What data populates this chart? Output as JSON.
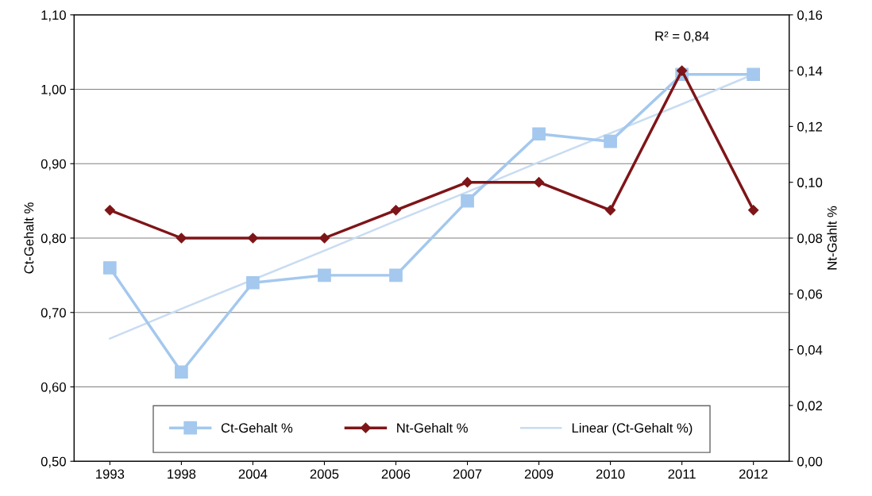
{
  "chart_data": {
    "type": "line",
    "categories": [
      "1993",
      "1998",
      "2004",
      "2005",
      "2006",
      "2007",
      "2009",
      "2010",
      "2011",
      "2012"
    ],
    "ylabel": "Ct-Gehalt %",
    "y2label": "Nt-Gahlt %",
    "series": [
      {
        "name": "Ct-Gehalt %",
        "color": "#a4c8ee",
        "marker": "square",
        "values": [
          0.76,
          0.62,
          0.74,
          0.75,
          0.75,
          0.85,
          0.94,
          0.93,
          1.02,
          1.02
        ]
      },
      {
        "name": "Nt-Gehalt %",
        "color": "#7e1518",
        "marker": "diamond",
        "axis": "y2",
        "values": [
          0.09,
          0.08,
          0.08,
          0.08,
          0.09,
          0.1,
          0.1,
          0.09,
          0.14,
          0.09
        ]
      },
      {
        "name": "Linear (Ct-Gehalt %)",
        "color": "#c8dcf2",
        "marker": "none",
        "values": [
          0.665,
          0.705,
          0.744,
          0.783,
          0.823,
          0.862,
          0.902,
          0.941,
          0.98,
          1.02
        ]
      }
    ],
    "ylim": [
      0.5,
      1.1
    ],
    "yticks": [
      {
        "value": 0.5,
        "label": "0,50"
      },
      {
        "value": 0.6,
        "label": "0,60"
      },
      {
        "value": 0.7,
        "label": "0,70"
      },
      {
        "value": 0.8,
        "label": "0,80"
      },
      {
        "value": 0.9,
        "label": "0,90"
      },
      {
        "value": 1.0,
        "label": "1,00"
      },
      {
        "value": 1.1,
        "label": "1,10"
      }
    ],
    "y2lim": [
      0,
      0.16
    ],
    "y2ticks": [
      {
        "value": 0,
        "label": "0,00"
      },
      {
        "value": 0.02,
        "label": "0,02"
      },
      {
        "value": 0.04,
        "label": "0,04"
      },
      {
        "value": 0.06,
        "label": "0,06"
      },
      {
        "value": 0.08,
        "label": "0,08"
      },
      {
        "value": 0.1,
        "label": "0,10"
      },
      {
        "value": 0.12,
        "label": "0,12"
      },
      {
        "value": 0.14,
        "label": "0,14"
      },
      {
        "value": 0.16,
        "label": "0,16"
      }
    ],
    "grid": "y",
    "legend": "bottom",
    "annotations": [
      "R² = 0,84"
    ]
  }
}
